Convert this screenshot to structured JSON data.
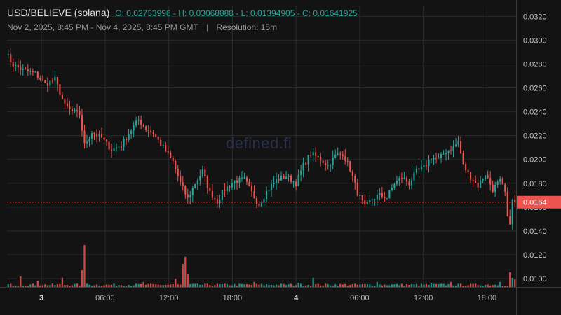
{
  "header": {
    "symbol": "USD/BELIEVE (solana)",
    "ohlc": "O: 0.02733996 - H: 0.03068888 - L: 0.01394905 - C: 0.01641925",
    "range": "Nov 2, 2025, 8:45 PM - Nov 4, 2025, 8:45 PM GMT",
    "separator": "|",
    "resolution": "Resolution: 15m"
  },
  "watermark": "defined.fi",
  "colors": {
    "up": "#26a69a",
    "down": "#ef5350",
    "background": "#131313",
    "grid": "#2a2a2a",
    "price_tag": "#ef5350"
  },
  "chart_data": {
    "type": "candlestick",
    "x_ticks": [
      "3",
      "06:00",
      "12:00",
      "18:00",
      "4",
      "06:00",
      "12:00",
      "18:00"
    ],
    "y_ticks": [
      "0.0100",
      "0.0120",
      "0.0140",
      "0.0160",
      "0.0180",
      "0.0200",
      "0.0220",
      "0.0240",
      "0.0260",
      "0.0280",
      "0.0300",
      "0.0320"
    ],
    "ylim": [
      0.0093,
      0.0329
    ],
    "last_price": 0.01641925,
    "last_price_label": "0.0164",
    "close_path": [
      [
        0,
        0.029
      ],
      [
        3,
        0.0279
      ],
      [
        7,
        0.0275
      ],
      [
        12,
        0.0272
      ],
      [
        16,
        0.0263
      ],
      [
        20,
        0.0267
      ],
      [
        24,
        0.0245
      ],
      [
        27,
        0.024
      ],
      [
        30,
        0.0238
      ],
      [
        32,
        0.0212
      ],
      [
        35,
        0.0223
      ],
      [
        39,
        0.0218
      ],
      [
        43,
        0.0208
      ],
      [
        47,
        0.0212
      ],
      [
        51,
        0.0225
      ],
      [
        54,
        0.0233
      ],
      [
        57,
        0.0226
      ],
      [
        60,
        0.0222
      ],
      [
        64,
        0.021
      ],
      [
        68,
        0.0198
      ],
      [
        71,
        0.018
      ],
      [
        74,
        0.0167
      ],
      [
        77,
        0.018
      ],
      [
        80,
        0.019
      ],
      [
        83,
        0.0172
      ],
      [
        86,
        0.0165
      ],
      [
        89,
        0.0175
      ],
      [
        93,
        0.0182
      ],
      [
        97,
        0.0183
      ],
      [
        100,
        0.0172
      ],
      [
        103,
        0.0162
      ],
      [
        106,
        0.0173
      ],
      [
        110,
        0.0183
      ],
      [
        114,
        0.0186
      ],
      [
        118,
        0.018
      ],
      [
        121,
        0.0195
      ],
      [
        124,
        0.0205
      ],
      [
        128,
        0.02
      ],
      [
        131,
        0.0195
      ],
      [
        134,
        0.0203
      ],
      [
        137,
        0.0205
      ],
      [
        140,
        0.0192
      ],
      [
        143,
        0.0172
      ],
      [
        146,
        0.016
      ],
      [
        149,
        0.0167
      ],
      [
        152,
        0.017
      ],
      [
        155,
        0.0168
      ],
      [
        158,
        0.018
      ],
      [
        161,
        0.0185
      ],
      [
        164,
        0.018
      ],
      [
        167,
        0.019
      ],
      [
        170,
        0.0193
      ],
      [
        173,
        0.0202
      ],
      [
        176,
        0.02
      ],
      [
        179,
        0.0207
      ],
      [
        182,
        0.021
      ],
      [
        184,
        0.0215
      ],
      [
        186,
        0.0195
      ],
      [
        189,
        0.0185
      ],
      [
        192,
        0.0178
      ],
      [
        195,
        0.0188
      ],
      [
        198,
        0.0175
      ],
      [
        201,
        0.0182
      ],
      [
        203,
        0.0172
      ],
      [
        204,
        0.015
      ],
      [
        205,
        0.0148
      ],
      [
        206,
        0.0165
      ],
      [
        207,
        0.0164
      ]
    ],
    "volume_spikes": {
      "5": 0.25,
      "12": 0.15,
      "22": 0.22,
      "30": 0.4,
      "31": 1.0,
      "55": 0.12,
      "68": 0.2,
      "71": 0.55,
      "72": 0.72,
      "73": 0.3,
      "100": 0.12,
      "118": 0.1,
      "124": 0.22,
      "150": 0.12,
      "172": 0.1,
      "180": 0.12,
      "200": 0.12,
      "204": 0.35,
      "205": 0.22,
      "206": 0.18
    }
  }
}
